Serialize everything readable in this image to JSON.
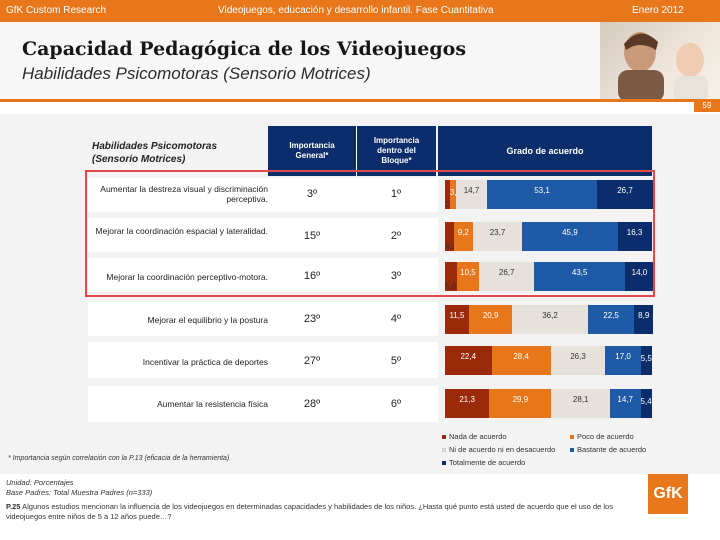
{
  "header": {
    "company": "GfK Custom Research",
    "study": "Videojuegos, educación y desarrollo infantil. Fase Cuantitativa",
    "date": "Enero 2012"
  },
  "page": {
    "title": "Capacidad Pedagógica de los Videojuegos",
    "subtitle": "Habilidades Psicomotoras (Sensorio Motrices)",
    "page_number": "59"
  },
  "table": {
    "left_header": "Habilidades Psicomotoras (Sensorio Motrices)",
    "col_importancia_general": "Importancia General*",
    "col_importancia_bloque": "Importancia dentro del Bloque*",
    "col_grado": "Grado de acuerdo",
    "rows": [
      {
        "label": "Aumentar la destreza visual y discriminación perceptiva.",
        "imp_general": "3º",
        "imp_bloque": "1º",
        "segments": [
          "2,3",
          "3,1",
          "14,7",
          "53,1",
          "26,7"
        ]
      },
      {
        "label": "Mejorar la coordinación espacial y lateralidad.",
        "imp_general": "15º",
        "imp_bloque": "2º",
        "segments": [
          "4,2",
          "9,2",
          "23,7",
          "45,9",
          "16,3"
        ]
      },
      {
        "label": "Mejorar la coordinación perceptivo-motora.",
        "imp_general": "16º",
        "imp_bloque": "3º",
        "segments": [
          "5,8",
          "10,5",
          "26,7",
          "43,5",
          "14,0"
        ]
      },
      {
        "label": "Mejorar el equilibrio y la postura",
        "imp_general": "23º",
        "imp_bloque": "4º",
        "segments": [
          "11,5",
          "20,9",
          "36,2",
          "22,5",
          "8,9"
        ]
      },
      {
        "label": "Incentivar la práctica de deportes",
        "imp_general": "27º",
        "imp_bloque": "5º",
        "segments": [
          "22,4",
          "28,4",
          "26,3",
          "17,0",
          "5,5"
        ]
      },
      {
        "label": "Aumentar la resistencia física",
        "imp_general": "28º",
        "imp_bloque": "6º",
        "segments": [
          "21,3",
          "29,9",
          "28,1",
          "14,7",
          "5,4"
        ]
      }
    ]
  },
  "chart_data": {
    "type": "bar",
    "stacked": true,
    "title": "Grado de acuerdo",
    "categories": [
      "Aumentar la destreza visual y discriminación perceptiva.",
      "Mejorar la coordinación espacial y lateralidad.",
      "Mejorar la coordinación perceptivo-motora.",
      "Mejorar el equilibrio y la postura",
      "Incentivar la práctica de deportes",
      "Aumentar la resistencia física"
    ],
    "series": [
      {
        "name": "Nada de acuerdo",
        "color": "#9b2a0a",
        "values": [
          2.3,
          4.2,
          5.8,
          11.5,
          22.4,
          21.3
        ]
      },
      {
        "name": "Poco de acuerdo",
        "color": "#e8771c",
        "values": [
          3.1,
          9.2,
          10.5,
          20.9,
          28.4,
          29.9
        ]
      },
      {
        "name": "Ni de acuerdo ni en desacuerdo",
        "color": "#e6e1da",
        "values": [
          14.7,
          23.7,
          26.7,
          36.2,
          26.3,
          28.1
        ]
      },
      {
        "name": "Bastante de acuerdo",
        "color": "#1f5aa6",
        "values": [
          53.1,
          45.9,
          43.5,
          22.5,
          17.0,
          14.7
        ]
      },
      {
        "name": "Totalmente de acuerdo",
        "color": "#0c2d6b",
        "values": [
          26.7,
          16.3,
          14.0,
          8.9,
          5.5,
          5.4
        ]
      }
    ],
    "xlim": [
      0,
      100
    ]
  },
  "legend": {
    "items": [
      {
        "label": "Nada de acuerdo",
        "color": "#9b2a0a"
      },
      {
        "label": "Poco de acuerdo",
        "color": "#e8771c"
      },
      {
        "label": "Ni de acuerdo ni en desacuerdo",
        "color": "#e6e1da"
      },
      {
        "label": "Bastante de acuerdo",
        "color": "#1f5aa6"
      },
      {
        "label": "Totalmente de acuerdo",
        "color": "#0c2d6b"
      }
    ]
  },
  "footnote": "* Importancia según correlación con la P.13 (eficacia de la herramienta)",
  "bottom": {
    "unidad": "Unidad: Porcentajes",
    "base": "Base Padres: Total Muestra Padres (n=333)",
    "question_code": "P.25",
    "question_text": "Algunos estudios mencionan la influencia de los videojuegos en determinadas capacidades y habilidades de los niños. ¿Hasta qué punto está usted de acuerdo que el uso de los videojuegos entre niños de 5 a 12 años puede…?",
    "logo": "GfK"
  }
}
